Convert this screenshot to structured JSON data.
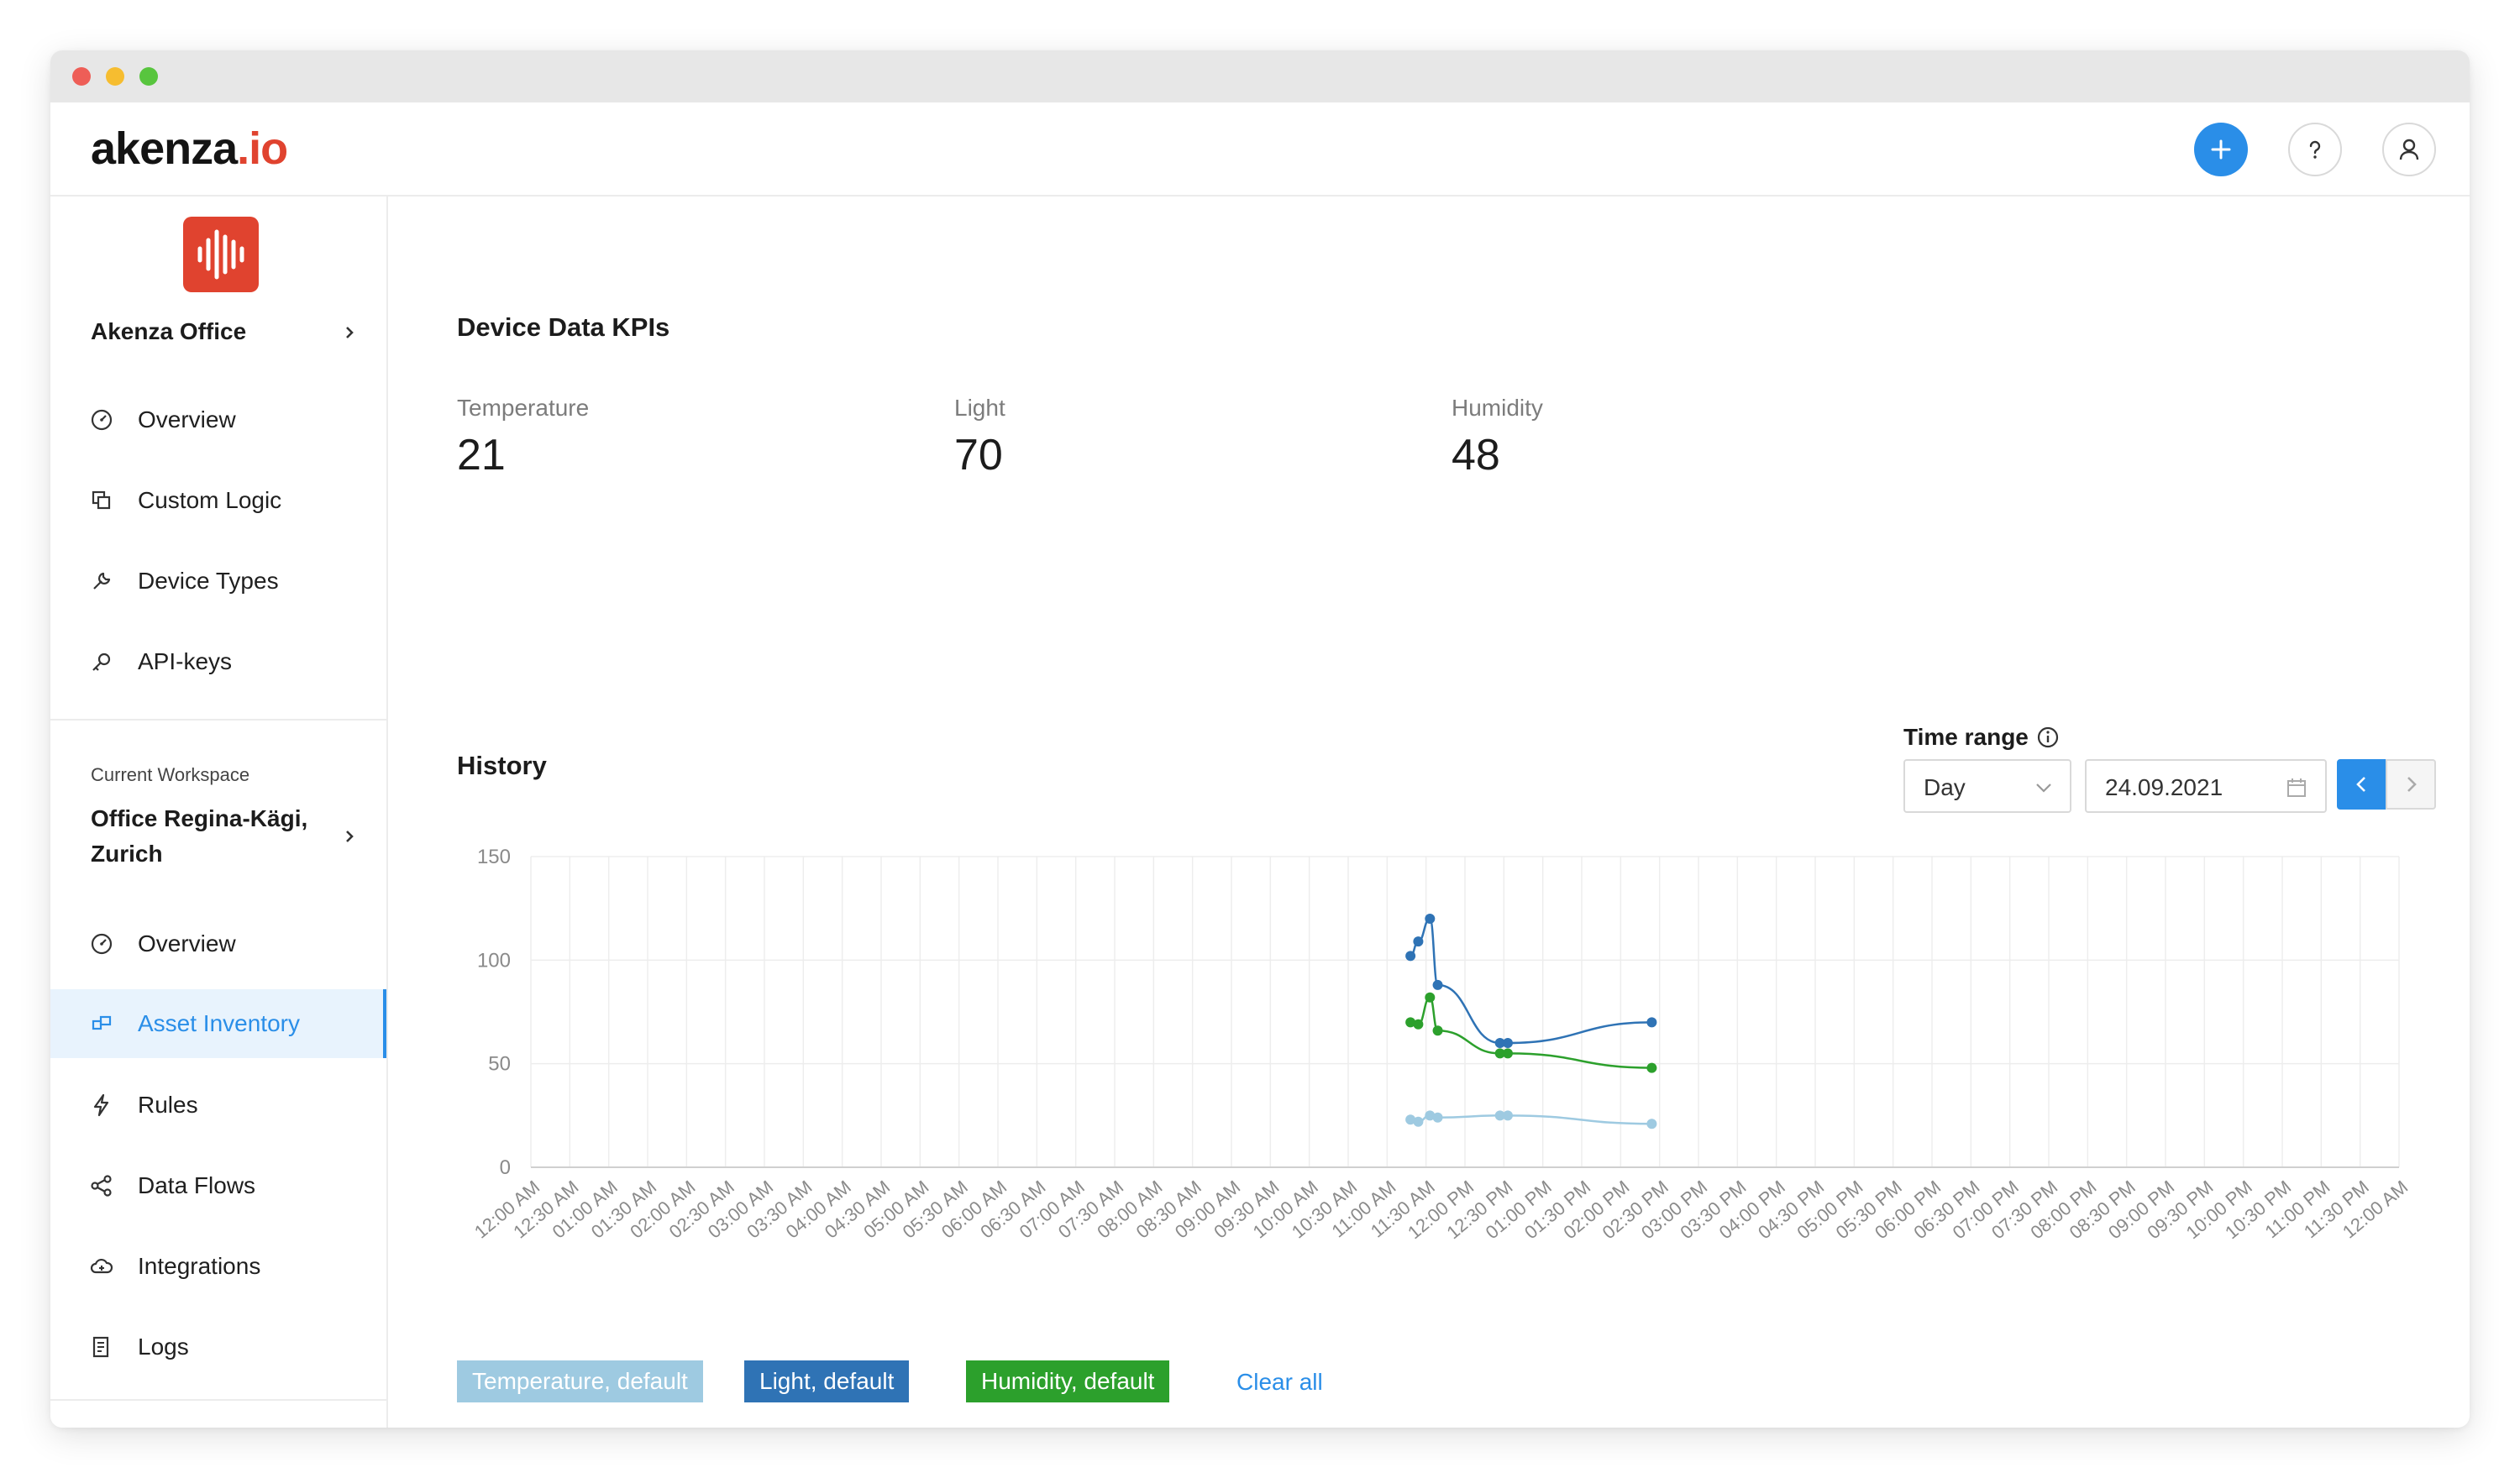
{
  "app": {
    "logo_main": "akenza",
    "logo_accent": ".io"
  },
  "sidebar": {
    "org_name": "Akenza Office",
    "org_items": [
      {
        "label": "Overview",
        "icon": "gauge-icon"
      },
      {
        "label": "Custom Logic",
        "icon": "copy-icon"
      },
      {
        "label": "Device Types",
        "icon": "wrench-icon"
      },
      {
        "label": "API-keys",
        "icon": "key-icon"
      }
    ],
    "workspace_label": "Current Workspace",
    "workspace_name_line1": "Office Regina-Kägi,",
    "workspace_name_line2": "Zurich",
    "workspace_items": [
      {
        "label": "Overview",
        "icon": "gauge-icon"
      },
      {
        "label": "Asset Inventory",
        "icon": "assets-icon",
        "active": true
      },
      {
        "label": "Rules",
        "icon": "bolt-icon"
      },
      {
        "label": "Data Flows",
        "icon": "share-icon"
      },
      {
        "label": "Integrations",
        "icon": "cloud-icon"
      },
      {
        "label": "Logs",
        "icon": "log-icon"
      }
    ]
  },
  "kpis": {
    "title": "Device Data KPIs",
    "items": [
      {
        "label": "Temperature",
        "value": "21"
      },
      {
        "label": "Light",
        "value": "70"
      },
      {
        "label": "Humidity",
        "value": "48"
      }
    ]
  },
  "history": {
    "title": "History",
    "time_range_label": "Time range",
    "period": "Day",
    "date": "24.09.2021",
    "clear_all": "Clear all"
  },
  "colors": {
    "accent": "#2a8ee8",
    "brand": "#e0432f",
    "temperature": "#9ecae1",
    "light": "#2f73b5",
    "humidity": "#2ca02c"
  },
  "chart_data": {
    "type": "line",
    "ylim": [
      0,
      150
    ],
    "yticks": [
      0,
      50,
      100,
      150
    ],
    "x_ticks": [
      "12:00 AM",
      "12:30 AM",
      "01:00 AM",
      "01:30 AM",
      "02:00 AM",
      "02:30 AM",
      "03:00 AM",
      "03:30 AM",
      "04:00 AM",
      "04:30 AM",
      "05:00 AM",
      "05:30 AM",
      "06:00 AM",
      "06:30 AM",
      "07:00 AM",
      "07:30 AM",
      "08:00 AM",
      "08:30 AM",
      "09:00 AM",
      "09:30 AM",
      "10:00 AM",
      "10:30 AM",
      "11:00 AM",
      "11:30 AM",
      "12:00 PM",
      "12:30 PM",
      "01:00 PM",
      "01:30 PM",
      "02:00 PM",
      "02:30 PM",
      "03:00 PM",
      "03:30 PM",
      "04:00 PM",
      "04:30 PM",
      "05:00 PM",
      "05:30 PM",
      "06:00 PM",
      "06:30 PM",
      "07:00 PM",
      "07:30 PM",
      "08:00 PM",
      "08:30 PM",
      "09:00 PM",
      "09:30 PM",
      "10:00 PM",
      "10:30 PM",
      "11:00 PM",
      "11:30 PM",
      "12:00 AM"
    ],
    "series": [
      {
        "name": "Temperature, default",
        "color": "#9ecae1",
        "x": [
          11.3,
          11.4,
          11.55,
          11.65,
          12.45,
          12.55,
          14.4
        ],
        "y": [
          23,
          22,
          25,
          24,
          25,
          25,
          21
        ]
      },
      {
        "name": "Light, default",
        "color": "#2f73b5",
        "x": [
          11.3,
          11.4,
          11.55,
          11.65,
          12.45,
          12.55,
          14.4
        ],
        "y": [
          102,
          109,
          120,
          88,
          60,
          60,
          70
        ]
      },
      {
        "name": "Humidity, default",
        "color": "#2ca02c",
        "x": [
          11.3,
          11.4,
          11.55,
          11.65,
          12.45,
          12.55,
          14.4
        ],
        "y": [
          70,
          69,
          82,
          66,
          55,
          55,
          48
        ]
      }
    ]
  }
}
